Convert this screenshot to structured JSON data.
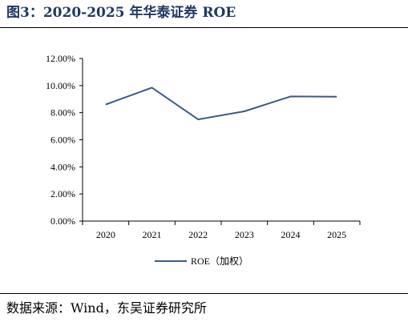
{
  "figure": {
    "title": "图3：2020-2025 年华泰证券 ROE",
    "source": "数据来源：Wind，东吴证券研究所"
  },
  "colors": {
    "title": "#1f3864",
    "line": "#3d5a8a",
    "axis": "#000000"
  },
  "chart_data": {
    "type": "line",
    "categories": [
      "2020",
      "2021",
      "2022",
      "2023",
      "2024",
      "2025"
    ],
    "series": [
      {
        "name": "ROE（加权）",
        "values": [
          8.6,
          9.85,
          7.5,
          8.1,
          9.2,
          9.18
        ]
      }
    ],
    "ylim": [
      0,
      12
    ],
    "yticks": [
      "0.00%",
      "2.00%",
      "4.00%",
      "6.00%",
      "8.00%",
      "10.00%",
      "12.00%"
    ],
    "title": "",
    "xlabel": "",
    "ylabel": "",
    "grid": false,
    "legend_position": "bottom"
  }
}
